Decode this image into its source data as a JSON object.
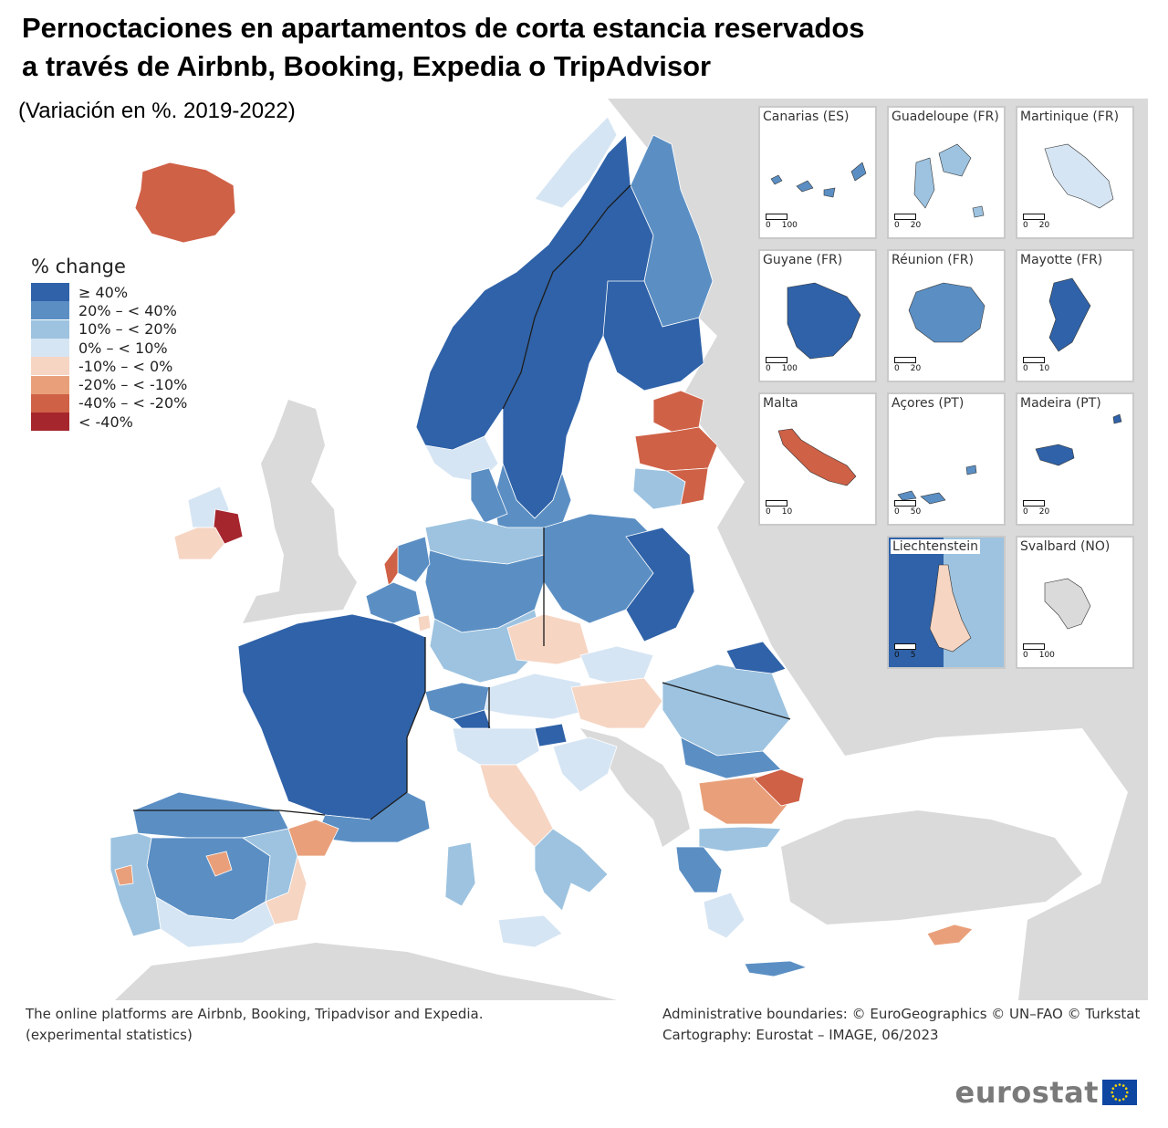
{
  "title": {
    "line1": "Pernoctaciones en apartamentos de corta estancia reservados",
    "line2": "a través de Airbnb, Booking, Expedia o TripAdvisor"
  },
  "subtitle": "(Variación en %. 2019-2022)",
  "legend": {
    "title": "% change",
    "classes": [
      {
        "label": "≥ 40%",
        "color": "#2f62a8"
      },
      {
        "label": "20% – < 40%",
        "color": "#5b8fc4"
      },
      {
        "label": "10% – < 20%",
        "color": "#9dc3e0"
      },
      {
        "label": "0% – < 10%",
        "color": "#d6e5f3"
      },
      {
        "label": "-10% – < 0%",
        "color": "#f6d5c3"
      },
      {
        "label": "-20% – < -10%",
        "color": "#e9a07a"
      },
      {
        "label": "-40% – < -20%",
        "color": "#cf6147"
      },
      {
        "label": "< -40%",
        "color": "#a6262e"
      }
    ]
  },
  "colors": {
    "no_data": "#dadada",
    "sea": "#ffffff",
    "border": "#1a1a1a",
    "land_outside": "#dadada"
  },
  "insets": [
    {
      "name": "Canarias (ES)",
      "scale_max": "100",
      "class": 1
    },
    {
      "name": "Guadeloupe (FR)",
      "scale_max": "20",
      "class": 2
    },
    {
      "name": "Martinique (FR)",
      "scale_max": "20",
      "class": 3
    },
    {
      "name": "Guyane (FR)",
      "scale_max": "100",
      "class": 0
    },
    {
      "name": "Réunion (FR)",
      "scale_max": "20",
      "class": 1
    },
    {
      "name": "Mayotte (FR)",
      "scale_max": "10",
      "class": 0
    },
    {
      "name": "Malta",
      "scale_max": "10",
      "class": 6
    },
    {
      "name": "Açores (PT)",
      "scale_max": "50",
      "class": 1
    },
    {
      "name": "Madeira (PT)",
      "scale_max": "20",
      "class": 0
    },
    {
      "name": "Liechtenstein",
      "scale_max": "5",
      "class": 4
    },
    {
      "name": "Svalbard (NO)",
      "scale_max": "100",
      "class": null
    }
  ],
  "scale_min": "0",
  "footnote_left": {
    "line1": "The online platforms are Airbnb, Booking, Tripadvisor and Expedia.",
    "line2": "(experimental statistics)"
  },
  "footnote_right": {
    "line1": "Administrative boundaries: © EuroGeographics © UN–FAO © Turkstat",
    "line2": "Cartography: Eurostat – IMAGE, 06/2023"
  },
  "brand": "eurostat",
  "regions": [
    {
      "name": "Iceland",
      "class": 6
    },
    {
      "name": "Ireland south",
      "class": 4
    },
    {
      "name": "Ireland midlands",
      "class": 7
    },
    {
      "name": "Ireland west",
      "class": 3
    },
    {
      "name": "Norway south",
      "class": 3
    },
    {
      "name": "Norway west",
      "class": 0
    },
    {
      "name": "Norway north",
      "class": 3
    },
    {
      "name": "Sweden",
      "class": 0
    },
    {
      "name": "Sweden south",
      "class": 1
    },
    {
      "name": "Finland north",
      "class": 1
    },
    {
      "name": "Finland central",
      "class": 0
    },
    {
      "name": "Estonia",
      "class": 6
    },
    {
      "name": "Latvia",
      "class": 6
    },
    {
      "name": "Lithuania",
      "class": 2
    },
    {
      "name": "Lithuania east",
      "class": 6
    },
    {
      "name": "Denmark",
      "class": 1
    },
    {
      "name": "Poland",
      "class": 1
    },
    {
      "name": "Poland east",
      "class": 0
    },
    {
      "name": "Germany north",
      "class": 2
    },
    {
      "name": "Germany centre",
      "class": 1
    },
    {
      "name": "Germany south",
      "class": 2
    },
    {
      "name": "Netherlands",
      "class": 1
    },
    {
      "name": "Netherlands coast",
      "class": 6
    },
    {
      "name": "Belgium",
      "class": 1
    },
    {
      "name": "Luxembourg",
      "class": 4
    },
    {
      "name": "France",
      "class": 0
    },
    {
      "name": "France south",
      "class": 1
    },
    {
      "name": "Spain north-west",
      "class": 1
    },
    {
      "name": "Spain centre",
      "class": 1
    },
    {
      "name": "Spain east",
      "class": 2
    },
    {
      "name": "Catalonia",
      "class": 5
    },
    {
      "name": "Valencia",
      "class": 4
    },
    {
      "name": "Andalusia",
      "class": 3
    },
    {
      "name": "Madrid",
      "class": 5
    },
    {
      "name": "Portugal",
      "class": 2
    },
    {
      "name": "Portugal centre",
      "class": 5
    },
    {
      "name": "Switzerland",
      "class": 1
    },
    {
      "name": "Switzerland south",
      "class": 0
    },
    {
      "name": "Austria",
      "class": 3
    },
    {
      "name": "Czechia",
      "class": 4
    },
    {
      "name": "Slovakia",
      "class": 3
    },
    {
      "name": "Hungary",
      "class": 4
    },
    {
      "name": "Slovenia",
      "class": 0
    },
    {
      "name": "Croatia",
      "class": 3
    },
    {
      "name": "Italy north",
      "class": 3
    },
    {
      "name": "Italy centre",
      "class": 4
    },
    {
      "name": "Italy south",
      "class": 2
    },
    {
      "name": "Sicily",
      "class": 3
    },
    {
      "name": "Sardinia",
      "class": 2
    },
    {
      "name": "Romania",
      "class": 2
    },
    {
      "name": "Romania north-east",
      "class": 0
    },
    {
      "name": "Romania south",
      "class": 1
    },
    {
      "name": "Bulgaria",
      "class": 5
    },
    {
      "name": "Bulgaria east",
      "class": 6
    },
    {
      "name": "Greece north",
      "class": 2
    },
    {
      "name": "Greece west",
      "class": 1
    },
    {
      "name": "Greece Attica",
      "class": 3
    },
    {
      "name": "Crete",
      "class": 1
    },
    {
      "name": "Cyprus",
      "class": 5
    }
  ]
}
